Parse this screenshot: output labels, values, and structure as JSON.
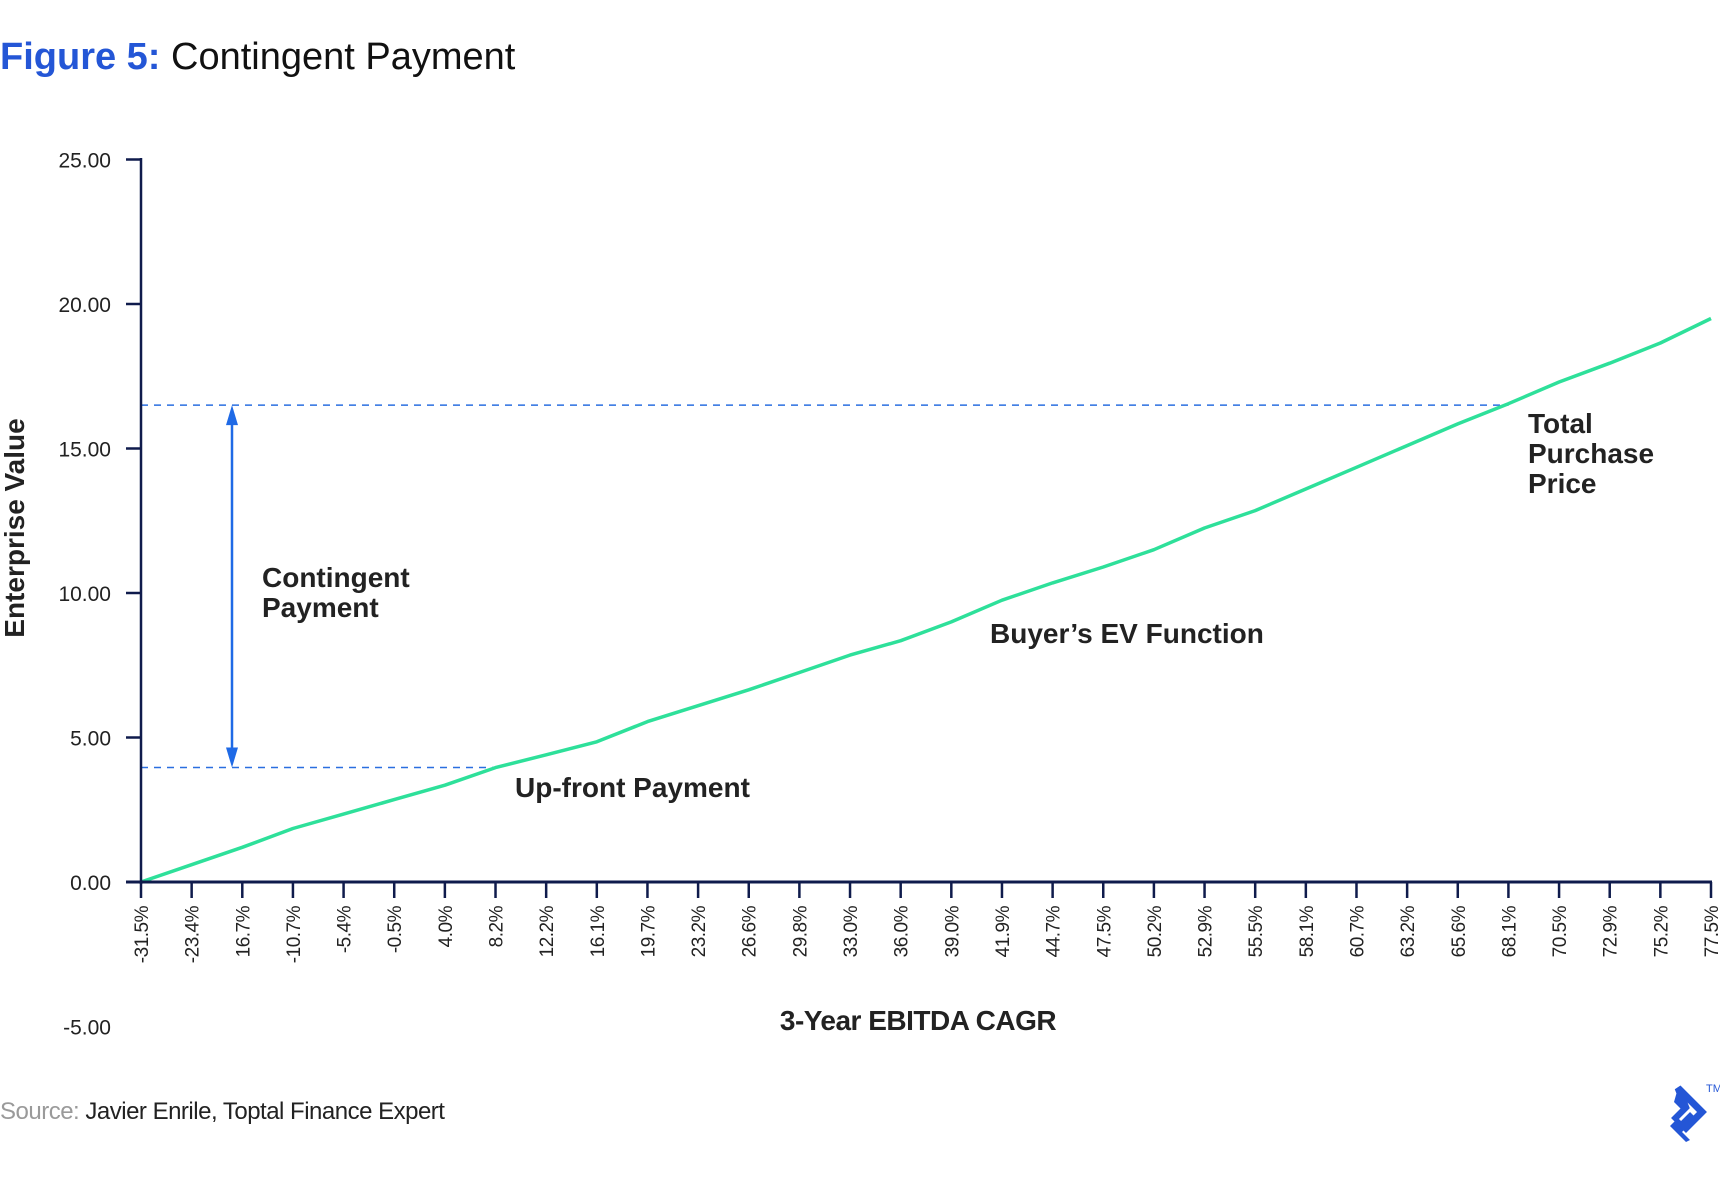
{
  "title": {
    "figure_label": "Figure 5:",
    "text": "Contingent Payment"
  },
  "source": {
    "label": "Source:",
    "text": "Javier Enrile, Toptal Finance Expert"
  },
  "logo": {
    "name": "toptal-logo",
    "trademark": "TM"
  },
  "colors": {
    "accent_blue": "#2456d6",
    "line_green": "#2ee09a",
    "axis_navy": "#0f1b4c",
    "dash_blue": "#2a6fe0",
    "arrow_blue": "#1f6ae6"
  },
  "chart_data": {
    "type": "line",
    "title": "Figure 5: Contingent Payment",
    "xlabel": "3-Year EBITDA CAGR",
    "ylabel": "Enterprise Value",
    "ylim": [
      -5,
      25
    ],
    "y_ticks": [
      "25.00",
      "20.00",
      "15.00",
      "10.00",
      "5.00",
      "0.00",
      "-5.00"
    ],
    "grid": false,
    "legend": null,
    "categories": [
      "-31.5%",
      "-23.4%",
      "16.7%",
      "-10.7%",
      "-5.4%",
      "-0.5%",
      "4.0%",
      "8.2%",
      "12.2%",
      "16.1%",
      "19.7%",
      "23.2%",
      "26.6%",
      "29.8%",
      "33.0%",
      "36.0%",
      "39.0%",
      "41.9%",
      "44.7%",
      "47.5%",
      "50.2%",
      "52.9%",
      "55.5%",
      "58.1%",
      "60.7%",
      "63.2%",
      "65.6%",
      "68.1%",
      "70.5%",
      "72.9%",
      "75.2%",
      "77.5%"
    ],
    "series": [
      {
        "name": "Buyer's EV Function",
        "values": [
          0.0,
          0.6,
          1.2,
          1.85,
          2.35,
          2.85,
          3.35,
          3.96,
          4.4,
          4.85,
          5.55,
          6.1,
          6.65,
          7.25,
          7.85,
          8.35,
          9.0,
          9.75,
          10.35,
          10.9,
          11.5,
          12.25,
          12.85,
          13.6,
          14.35,
          15.1,
          15.85,
          16.55,
          17.3,
          17.95,
          18.65,
          19.5
        ]
      }
    ],
    "reference_lines": [
      {
        "name": "Up-front Payment",
        "y": 3.96,
        "x_end_category": "8.2%",
        "style": "dashed"
      },
      {
        "name": "Total Purchase Price",
        "y": 16.5,
        "x_end_category": "68.1%",
        "style": "dashed"
      }
    ],
    "annotations": [
      {
        "text": "Contingent Payment",
        "type": "double-arrow",
        "from_y": 3.96,
        "to_y": 16.5
      },
      {
        "text": "Up-front Payment"
      },
      {
        "text": "Buyer's EV Function"
      },
      {
        "text": "Total Purchase Price"
      }
    ]
  },
  "labels": {
    "contingent_line1": "Contingent",
    "contingent_line2": "Payment",
    "upfront": "Up-front Payment",
    "ev_function": "Buyer’s EV Function",
    "total_line1": "Total",
    "total_line2": "Purchase",
    "total_line3": "Price"
  }
}
